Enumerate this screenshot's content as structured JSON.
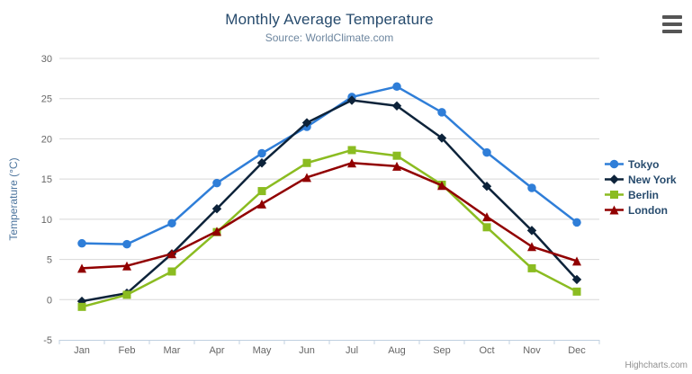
{
  "chart_data": {
    "type": "line",
    "title": "Monthly Average Temperature",
    "subtitle": "Source: WorldClimate.com",
    "categories": [
      "Jan",
      "Feb",
      "Mar",
      "Apr",
      "May",
      "Jun",
      "Jul",
      "Aug",
      "Sep",
      "Oct",
      "Nov",
      "Dec"
    ],
    "series": [
      {
        "name": "Tokyo",
        "color": "#2f7ed8",
        "marker": "circle",
        "values": [
          7.0,
          6.9,
          9.5,
          14.5,
          18.2,
          21.5,
          25.2,
          26.5,
          23.3,
          18.3,
          13.9,
          9.6
        ]
      },
      {
        "name": "New York",
        "color": "#0d233a",
        "marker": "diamond",
        "values": [
          -0.2,
          0.8,
          5.7,
          11.3,
          17.0,
          22.0,
          24.8,
          24.1,
          20.1,
          14.1,
          8.6,
          2.5
        ]
      },
      {
        "name": "Berlin",
        "color": "#8bbc21",
        "marker": "square",
        "values": [
          -0.9,
          0.6,
          3.5,
          8.4,
          13.5,
          17.0,
          18.6,
          17.9,
          14.3,
          9.0,
          3.9,
          1.0
        ]
      },
      {
        "name": "London",
        "color": "#910000",
        "marker": "triangle",
        "values": [
          3.9,
          4.2,
          5.7,
          8.5,
          11.9,
          15.2,
          17.0,
          16.6,
          14.2,
          10.3,
          6.6,
          4.8
        ]
      }
    ],
    "xlabel": "",
    "ylabel": "Temperature (°C)",
    "ylim": [
      -5,
      30
    ],
    "ytick_step": 5,
    "grid": true,
    "legend_position": "right"
  },
  "credits": "Highcharts.com",
  "colors": {
    "title": "#274b6d",
    "subtitle": "#6d869f",
    "axis_label": "#666666",
    "axis_title": "#4d759e",
    "grid_line": "#d8d8d8",
    "axis_line": "#c0d0e0",
    "legend_text": "#274b6d",
    "credits_text": "#909090",
    "menu_icon": "#555555"
  }
}
